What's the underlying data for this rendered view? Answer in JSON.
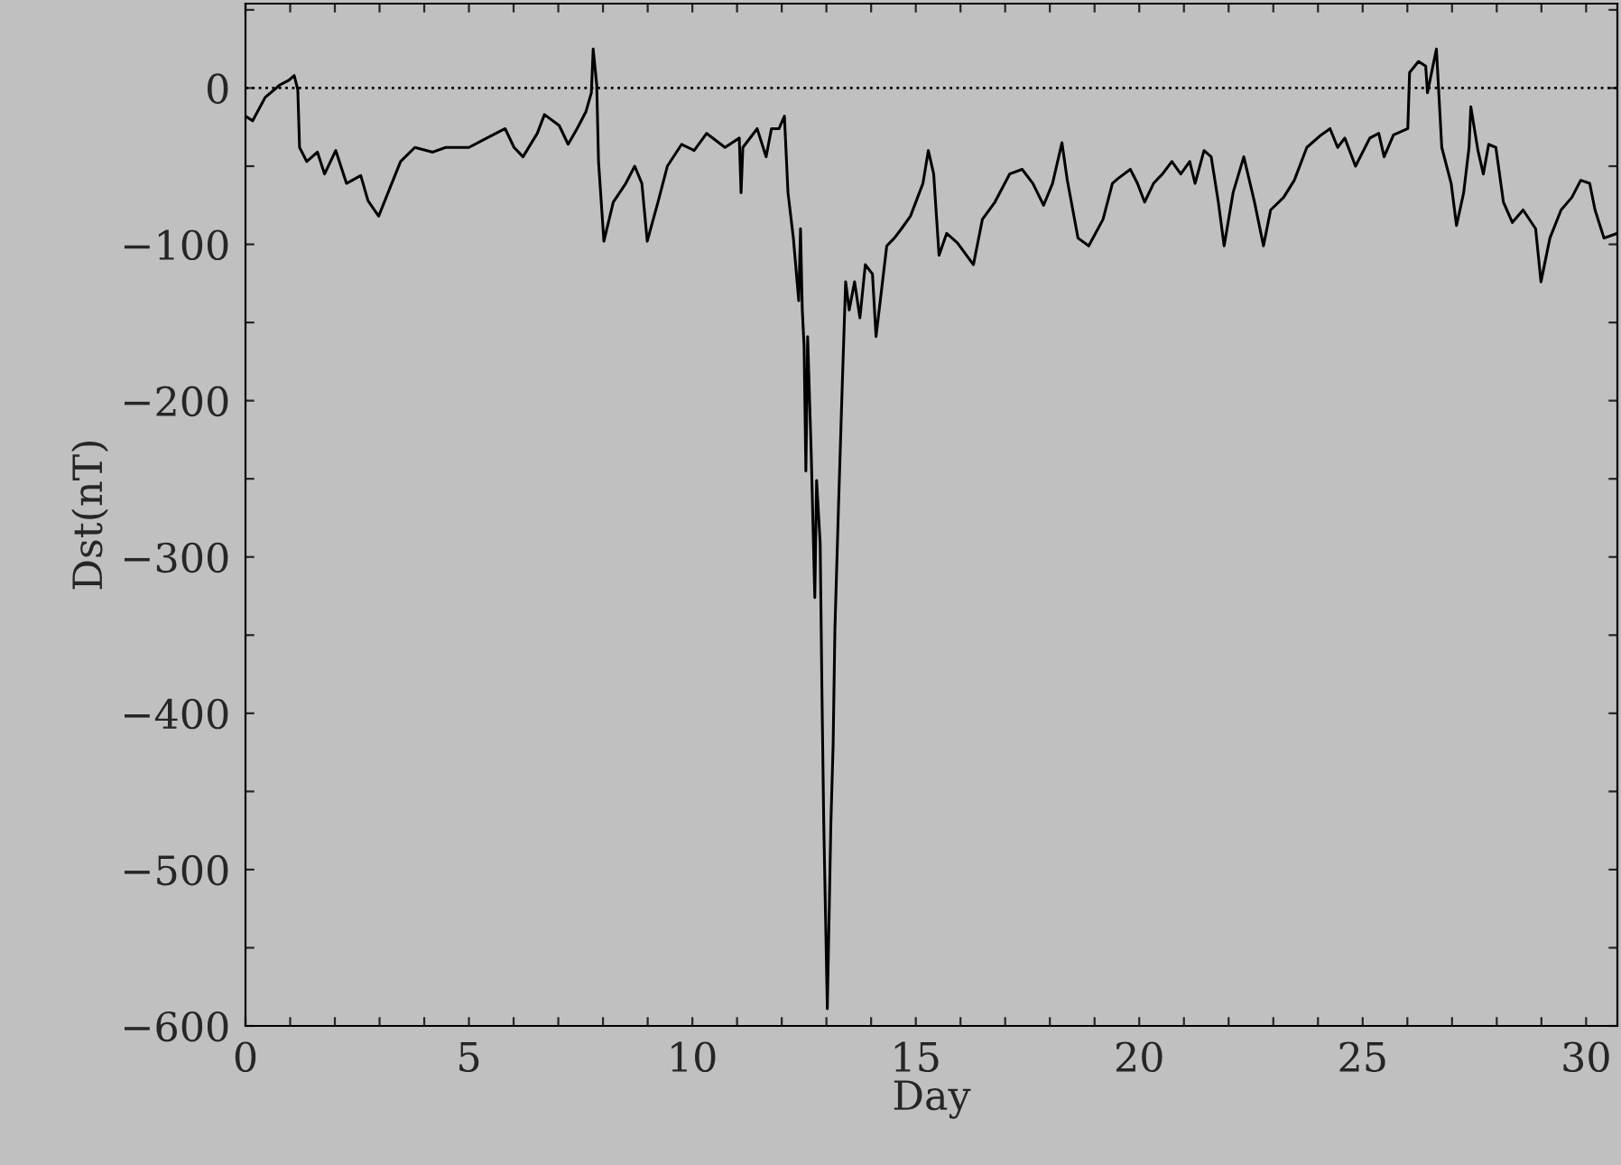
{
  "chart_data": {
    "type": "line",
    "xlabel": "Day",
    "ylabel": "Dst(nT)",
    "xlim": [
      0,
      30.7
    ],
    "ylim": [
      -600,
      54
    ],
    "xticks": [
      0,
      {
        "value": 1,
        "label": null
      },
      {
        "value": 2,
        "label": null
      },
      {
        "value": 3,
        "label": null
      },
      {
        "value": 4,
        "label": null
      },
      5,
      {
        "value": 6,
        "label": null
      },
      {
        "value": 7,
        "label": null
      },
      {
        "value": 8,
        "label": null
      },
      {
        "value": 9,
        "label": null
      },
      10,
      {
        "value": 11,
        "label": null
      },
      {
        "value": 12,
        "label": null
      },
      {
        "value": 13,
        "label": null
      },
      {
        "value": 14,
        "label": null
      },
      15,
      {
        "value": 16,
        "label": null
      },
      {
        "value": 17,
        "label": null
      },
      {
        "value": 18,
        "label": null
      },
      {
        "value": 19,
        "label": null
      },
      20,
      {
        "value": 21,
        "label": null
      },
      {
        "value": 22,
        "label": null
      },
      {
        "value": 23,
        "label": null
      },
      {
        "value": 24,
        "label": null
      },
      25,
      {
        "value": 26,
        "label": null
      },
      {
        "value": 27,
        "label": null
      },
      {
        "value": 28,
        "label": null
      },
      {
        "value": 29,
        "label": null
      },
      30
    ],
    "yticks": [
      {
        "value": -600,
        "label": "−600"
      },
      {
        "value": -550,
        "label": null
      },
      {
        "value": -500,
        "label": "−500"
      },
      {
        "value": -450,
        "label": null
      },
      {
        "value": -400,
        "label": "−400"
      },
      {
        "value": -350,
        "label": null
      },
      {
        "value": -300,
        "label": "−300"
      },
      {
        "value": -250,
        "label": null
      },
      {
        "value": -200,
        "label": "−200"
      },
      {
        "value": -150,
        "label": null
      },
      {
        "value": -100,
        "label": "−100"
      },
      {
        "value": -50,
        "label": null
      },
      0,
      {
        "value": 50,
        "label": null
      }
    ],
    "grid": false,
    "legend": false,
    "ref_lines": [
      {
        "axis": "y",
        "value": 0,
        "color": "#000000",
        "line_style": "dotted"
      }
    ],
    "series": [
      {
        "color": "#000000",
        "x": [
          0,
          0.16,
          0.44,
          0.77,
          0.97,
          1.09,
          1.17,
          1.21,
          1.37,
          1.61,
          1.77,
          2.02,
          2.26,
          2.58,
          2.74,
          2.98,
          3.19,
          3.47,
          3.79,
          4.19,
          4.48,
          5.0,
          5.4,
          5.81,
          6.01,
          6.21,
          6.53,
          6.69,
          7.02,
          7.22,
          7.42,
          7.62,
          7.74,
          7.78,
          7.86,
          7.9,
          8.02,
          8.23,
          8.51,
          8.71,
          8.87,
          8.99,
          9.23,
          9.44,
          9.76,
          10.04,
          10.32,
          10.73,
          11.05,
          11.09,
          11.13,
          11.45,
          11.65,
          11.77,
          11.94,
          12.06,
          12.14,
          12.26,
          12.38,
          12.42,
          12.46,
          12.5,
          12.54,
          12.58,
          12.66,
          12.74,
          12.78,
          12.86,
          12.9,
          12.94,
          13.02,
          13.1,
          13.15,
          13.19,
          13.27,
          13.35,
          13.43,
          13.51,
          13.63,
          13.75,
          13.87,
          14.03,
          14.11,
          14.23,
          14.35,
          14.52,
          14.68,
          14.88,
          15.16,
          15.28,
          15.4,
          15.52,
          15.69,
          15.93,
          16.29,
          16.49,
          16.77,
          17.1,
          17.38,
          17.62,
          17.86,
          18.06,
          18.27,
          18.39,
          18.63,
          18.87,
          19.19,
          19.4,
          19.52,
          19.8,
          19.96,
          20.12,
          20.32,
          20.52,
          20.73,
          20.93,
          21.13,
          21.25,
          21.45,
          21.61,
          21.77,
          21.9,
          22.1,
          22.34,
          22.58,
          22.78,
          22.94,
          23.23,
          23.47,
          23.75,
          24.07,
          24.27,
          24.44,
          24.6,
          24.84,
          25.16,
          25.36,
          25.48,
          25.69,
          26.01,
          26.05,
          26.25,
          26.41,
          26.45,
          26.65,
          26.77,
          26.98,
          27.1,
          27.26,
          27.38,
          27.42,
          27.58,
          27.7,
          27.82,
          27.98,
          28.15,
          28.35,
          28.59,
          28.87,
          28.99,
          29.19,
          29.44,
          29.68,
          29.88,
          30.08,
          30.2,
          30.4,
          30.69
        ],
        "values": [
          -18,
          -21,
          -6,
          2,
          5,
          8,
          -1,
          -38,
          -47,
          -41,
          -55,
          -40,
          -61,
          -56,
          -72,
          -82,
          -67,
          -47,
          -38,
          -41,
          -38,
          -38,
          -32,
          -26,
          -38,
          -44,
          -29,
          -17,
          -24,
          -36,
          -26,
          -15,
          -3,
          25,
          2,
          -47,
          -98,
          -73,
          -61,
          -50,
          -61,
          -98,
          -73,
          -50,
          -36,
          -40,
          -29,
          -38,
          -32,
          -67,
          -38,
          -26,
          -44,
          -26,
          -26,
          -18,
          -67,
          -96,
          -136,
          -90,
          -142,
          -165,
          -245,
          -159,
          -234,
          -326,
          -251,
          -291,
          -387,
          -470,
          -589,
          -470,
          -420,
          -346,
          -268,
          -194,
          -124,
          -142,
          -124,
          -147,
          -113,
          -119,
          -159,
          -130,
          -101,
          -96,
          -90,
          -82,
          -61,
          -40,
          -55,
          -107,
          -93,
          -99,
          -113,
          -84,
          -73,
          -55,
          -52,
          -61,
          -75,
          -61,
          -35,
          -59,
          -96,
          -101,
          -84,
          -61,
          -58,
          -52,
          -61,
          -73,
          -61,
          -55,
          -47,
          -55,
          -47,
          -61,
          -40,
          -44,
          -73,
          -101,
          -67,
          -44,
          -73,
          -101,
          -78,
          -70,
          -59,
          -38,
          -30,
          -26,
          -38,
          -32,
          -50,
          -32,
          -29,
          -44,
          -30,
          -26,
          10,
          17,
          14,
          -3,
          25,
          -38,
          -61,
          -88,
          -67,
          -38,
          -12,
          -40,
          -55,
          -36,
          -38,
          -73,
          -86,
          -78,
          -90,
          -124,
          -96,
          -78,
          -70,
          -59,
          -61,
          -78,
          -96,
          -93
        ]
      }
    ]
  }
}
